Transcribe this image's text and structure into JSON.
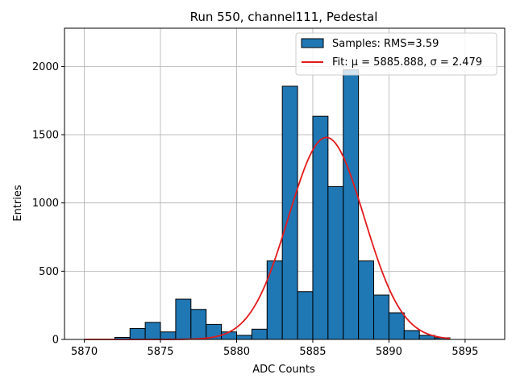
{
  "chart_data": {
    "type": "bar",
    "title": "Run 550, channel111, Pedestal",
    "xlabel": "ADC Counts",
    "ylabel": "Entries",
    "xlim": [
      5868.7,
      5897.6
    ],
    "ylim": [
      0,
      2280
    ],
    "xticks": [
      5870,
      5875,
      5880,
      5885,
      5890,
      5895
    ],
    "yticks": [
      0,
      500,
      1000,
      1500,
      2000
    ],
    "grid": true,
    "bin_width": 1,
    "bins": [
      {
        "left": 5872,
        "value": 15
      },
      {
        "left": 5873,
        "value": 80
      },
      {
        "left": 5874,
        "value": 125
      },
      {
        "left": 5875,
        "value": 55
      },
      {
        "left": 5876,
        "value": 295
      },
      {
        "left": 5877,
        "value": 220
      },
      {
        "left": 5878,
        "value": 110
      },
      {
        "left": 5879,
        "value": 55
      },
      {
        "left": 5880,
        "value": 30
      },
      {
        "left": 5881,
        "value": 75
      },
      {
        "left": 5882,
        "value": 575
      },
      {
        "left": 5883,
        "value": 1855
      },
      {
        "left": 5884,
        "value": 350
      },
      {
        "left": 5885,
        "value": 1635
      },
      {
        "left": 5886,
        "value": 1120
      },
      {
        "left": 5887,
        "value": 1975
      },
      {
        "left": 5888,
        "value": 575
      },
      {
        "left": 5889,
        "value": 325
      },
      {
        "left": 5890,
        "value": 195
      },
      {
        "left": 5891,
        "value": 65
      },
      {
        "left": 5892,
        "value": 30
      },
      {
        "left": 5893,
        "value": 12
      }
    ],
    "fit": {
      "mu": 5885.888,
      "sigma": 2.479,
      "amplitude": 1480,
      "x_range": [
        5870,
        5894
      ]
    },
    "legend": {
      "placement": "top-right",
      "entries": [
        {
          "label": "Samples: RMS=3.59",
          "kind": "patch"
        },
        {
          "label": "Fit: μ = 5885.888, σ = 2.479",
          "kind": "line"
        }
      ]
    },
    "colors": {
      "bar_fill": "#1f77b4",
      "bar_edge": "#000000",
      "fit_line": "#e41a1c",
      "grid": "#b0b0b0"
    }
  }
}
